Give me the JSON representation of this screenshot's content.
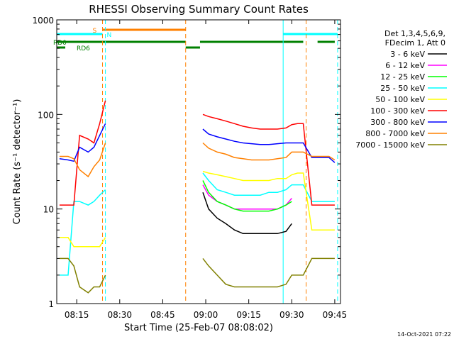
{
  "chart_data": {
    "type": "line",
    "title": "RHESSI Observing Summary Count Rates",
    "xlabel": "Start Time (25-Feb-07 08:08:02)",
    "ylabel": "Count Rate (s⁻¹ detector⁻¹)",
    "yscale": "log",
    "ylim": [
      1,
      1000
    ],
    "xlim": [
      "08:08:02",
      "09:47:00"
    ],
    "x_ticks": [
      "08:15",
      "08:30",
      "08:45",
      "09:00",
      "09:15",
      "09:30",
      "09:45"
    ],
    "y_ticks": [
      "1",
      "10",
      "100",
      "1000"
    ],
    "grid": false,
    "legend_position": "right",
    "legend_header": [
      "Det 1,3,4,5,6,9,",
      "FDecim 1, Att 0"
    ],
    "footer_date": "14-Oct-2021 07:22",
    "x": [
      "08:09",
      "08:12",
      "08:14",
      "08:16",
      "08:19",
      "08:21",
      "08:23",
      "08:25",
      "08:53",
      "08:55",
      "08:57",
      "08:59",
      "09:01",
      "09:04",
      "09:07",
      "09:10",
      "09:13",
      "09:16",
      "09:19",
      "09:22",
      "09:25",
      "09:28",
      "09:30",
      "09:32",
      "09:34",
      "09:37",
      "09:40",
      "09:43",
      "09:45"
    ],
    "series": [
      {
        "name": "3 - 6 keV",
        "color": "#000000",
        "values": [
          null,
          null,
          null,
          null,
          null,
          null,
          null,
          null,
          null,
          null,
          null,
          15,
          10,
          8,
          7,
          6,
          5.5,
          5.5,
          5.5,
          5.5,
          5.5,
          5.8,
          7,
          null,
          null,
          null,
          null,
          null,
          null
        ]
      },
      {
        "name": "6 - 12 keV",
        "color": "#ff00ff",
        "values": [
          null,
          null,
          null,
          null,
          null,
          null,
          null,
          null,
          null,
          null,
          null,
          18,
          14,
          12,
          11,
          10,
          10,
          10,
          10,
          10,
          10,
          11,
          13,
          null,
          null,
          null,
          null,
          null,
          null
        ]
      },
      {
        "name": "12 - 25 keV",
        "color": "#00ff00",
        "values": [
          null,
          null,
          null,
          null,
          null,
          null,
          null,
          null,
          null,
          null,
          null,
          20,
          15,
          12,
          11,
          10,
          9.5,
          9.5,
          9.5,
          9.5,
          10,
          11,
          12,
          null,
          null,
          null,
          null,
          null,
          null
        ]
      },
      {
        "name": "25 - 50 keV",
        "color": "#00ffff",
        "values": [
          2,
          2,
          12,
          12,
          11,
          12,
          14,
          16,
          null,
          null,
          null,
          24,
          20,
          16,
          15,
          14,
          14,
          14,
          14,
          15,
          15,
          16,
          18,
          18,
          18,
          12,
          12,
          12,
          12
        ]
      },
      {
        "name": "50 - 100 keV",
        "color": "#ffff00",
        "values": [
          5,
          5,
          4,
          4,
          4,
          4,
          4,
          5,
          null,
          null,
          null,
          25,
          24,
          23,
          22,
          21,
          20,
          20,
          20,
          20,
          21,
          21,
          23,
          24,
          24,
          6,
          6,
          6,
          6
        ]
      },
      {
        "name": "100 - 300 keV",
        "color": "#ff0000",
        "values": [
          11,
          11,
          11,
          60,
          55,
          50,
          80,
          140,
          null,
          null,
          null,
          100,
          95,
          90,
          85,
          80,
          75,
          72,
          70,
          70,
          70,
          72,
          78,
          80,
          80,
          11,
          11,
          11,
          11
        ]
      },
      {
        "name": "300 - 800 keV",
        "color": "#0000ff",
        "values": [
          34,
          33,
          32,
          45,
          40,
          45,
          60,
          80,
          null,
          null,
          null,
          70,
          62,
          58,
          55,
          52,
          50,
          49,
          48,
          48,
          49,
          50,
          50,
          50,
          50,
          35,
          35,
          35,
          31
        ]
      },
      {
        "name": "800 - 7000 keV",
        "color": "#ff8000",
        "values": [
          36,
          36,
          34,
          26,
          22,
          28,
          33,
          50,
          null,
          null,
          null,
          50,
          44,
          40,
          38,
          35,
          34,
          33,
          33,
          33,
          34,
          35,
          40,
          40,
          40,
          36,
          36,
          36,
          33
        ]
      },
      {
        "name": "7000 - 15000 keV",
        "color": "#808000",
        "values": [
          3,
          3,
          2.5,
          1.5,
          1.3,
          1.5,
          1.5,
          2,
          null,
          null,
          null,
          3,
          2.5,
          2,
          1.6,
          1.5,
          1.5,
          1.5,
          1.5,
          1.5,
          1.5,
          1.6,
          2,
          2,
          2,
          3,
          3,
          3,
          3
        ]
      }
    ],
    "flag_bars": [
      {
        "label": "S",
        "color": "#ff8000",
        "intervals": [
          [
            "08:24",
            "08:53"
          ]
        ]
      },
      {
        "label": "N",
        "color": "#00ffff",
        "intervals": [
          [
            "08:08",
            "08:24"
          ],
          [
            "09:27",
            "09:46"
          ]
        ]
      },
      {
        "label": "RD0",
        "color": "#008000",
        "intervals": [
          [
            "08:08",
            "08:53"
          ],
          [
            "08:58",
            "09:34"
          ],
          [
            "09:39",
            "09:45"
          ]
        ]
      },
      {
        "label": "RD6",
        "color": "#008000",
        "intervals": [
          [
            "08:08",
            "08:11"
          ],
          [
            "08:53",
            "08:58"
          ]
        ]
      }
    ],
    "vlines": [
      {
        "time": "08:24",
        "color": "#ff8000",
        "style": "dashed"
      },
      {
        "time": "08:25",
        "color": "#00ffff",
        "style": "dashed"
      },
      {
        "time": "08:53",
        "color": "#ff8000",
        "style": "dashed"
      },
      {
        "time": "09:27",
        "color": "#00ffff",
        "style": "solid"
      },
      {
        "time": "09:35",
        "color": "#ff8000",
        "style": "dashed"
      },
      {
        "time": "09:46",
        "color": "#00ffff",
        "style": "dashed"
      }
    ]
  }
}
